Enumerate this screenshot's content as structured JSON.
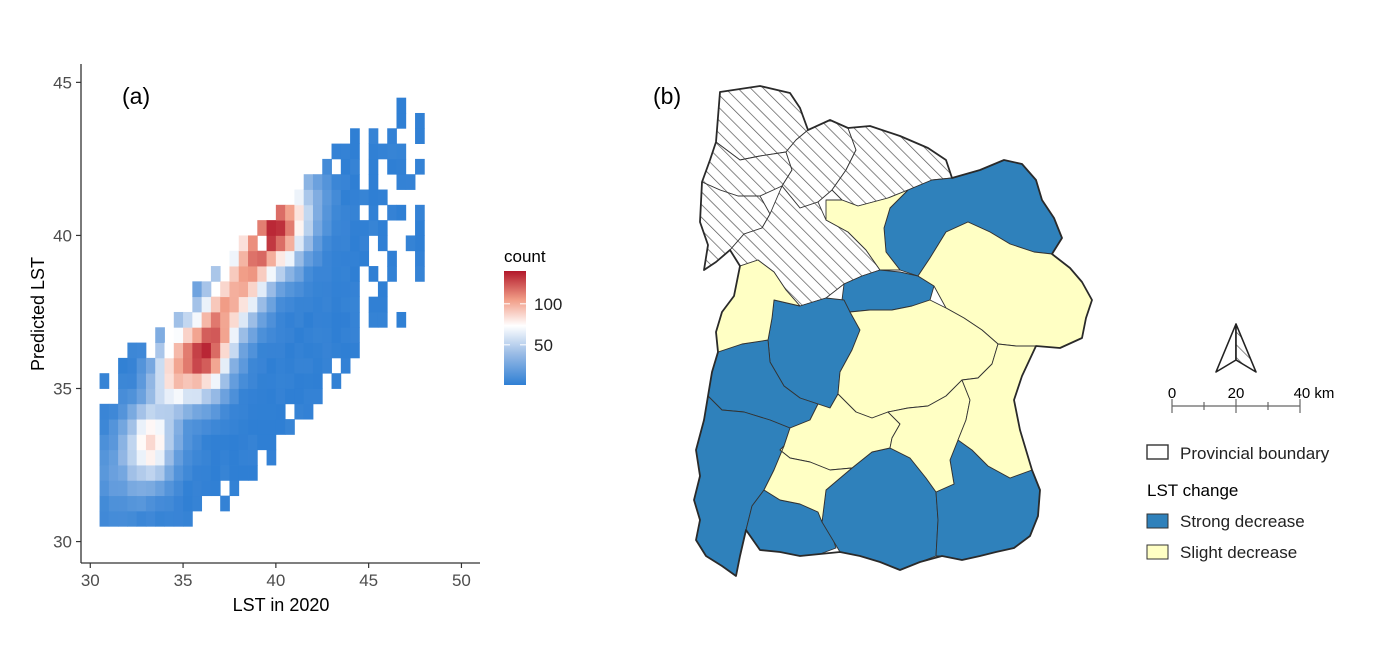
{
  "chart_data": [
    {
      "type": "heatmap",
      "panel_label": "(a)",
      "xlabel": "LST in 2020",
      "ylabel": "Predicted LST",
      "xlim": [
        29.5,
        51
      ],
      "ylim": [
        29.3,
        45.6
      ],
      "x_ticks": [
        30,
        35,
        40,
        45,
        50
      ],
      "y_ticks": [
        30,
        35,
        40,
        45
      ],
      "bin_width": 0.5,
      "legend": {
        "title": "count",
        "ticks": [
          50,
          100
        ],
        "range": [
          1,
          140
        ],
        "colors": [
          "#2f7fd4",
          "#ffffff",
          "#b2182b"
        ]
      },
      "density_ridge": [
        {
          "x": 31.5,
          "y": 32.2,
          "count": 25
        },
        {
          "x": 32.5,
          "y": 32.8,
          "count": 60
        },
        {
          "x": 33.0,
          "y": 33.0,
          "count": 85
        },
        {
          "x": 33.5,
          "y": 33.3,
          "count": 55
        },
        {
          "x": 34.0,
          "y": 34.8,
          "count": 65
        },
        {
          "x": 34.5,
          "y": 35.4,
          "count": 100
        },
        {
          "x": 35.0,
          "y": 35.7,
          "count": 115
        },
        {
          "x": 35.5,
          "y": 35.8,
          "count": 130
        },
        {
          "x": 36.0,
          "y": 36.0,
          "count": 135
        },
        {
          "x": 36.5,
          "y": 36.6,
          "count": 120
        },
        {
          "x": 37.0,
          "y": 37.3,
          "count": 105
        },
        {
          "x": 37.5,
          "y": 37.8,
          "count": 100
        },
        {
          "x": 38.0,
          "y": 38.3,
          "count": 105
        },
        {
          "x": 38.5,
          "y": 38.9,
          "count": 115
        },
        {
          "x": 39.0,
          "y": 39.4,
          "count": 125
        },
        {
          "x": 39.5,
          "y": 39.8,
          "count": 135
        },
        {
          "x": 40.0,
          "y": 40.0,
          "count": 130
        },
        {
          "x": 40.5,
          "y": 40.3,
          "count": 95
        },
        {
          "x": 41.0,
          "y": 40.6,
          "count": 55
        }
      ]
    },
    {
      "type": "choropleth_map",
      "panel_label": "(b)",
      "scale_bar": {
        "ticks": [
          "0",
          "20",
          "40 km"
        ]
      },
      "legend": {
        "boundary_label": "Provincial boundary",
        "title": "LST change",
        "classes": [
          {
            "label": "Strong decrease",
            "color": "#2f81bb"
          },
          {
            "label": "Slight decrease",
            "color": "#ffffc4"
          }
        ],
        "hatch_color": "#555555"
      },
      "regions": [
        {
          "class": "provincial"
        },
        {
          "class": "provincial"
        },
        {
          "class": "provincial"
        },
        {
          "class": "provincial"
        },
        {
          "class": "provincial"
        },
        {
          "class": "provincial"
        },
        {
          "class": "Strong decrease"
        },
        {
          "class": "Strong decrease"
        },
        {
          "class": "Strong decrease"
        },
        {
          "class": "Strong decrease"
        },
        {
          "class": "Strong decrease"
        },
        {
          "class": "Strong decrease"
        },
        {
          "class": "Strong decrease"
        },
        {
          "class": "Strong decrease"
        },
        {
          "class": "Slight decrease"
        },
        {
          "class": "Slight decrease"
        },
        {
          "class": "Slight decrease"
        },
        {
          "class": "Slight decrease"
        },
        {
          "class": "Slight decrease"
        },
        {
          "class": "Slight decrease"
        },
        {
          "class": "Slight decrease"
        },
        {
          "class": "Slight decrease"
        }
      ]
    }
  ]
}
